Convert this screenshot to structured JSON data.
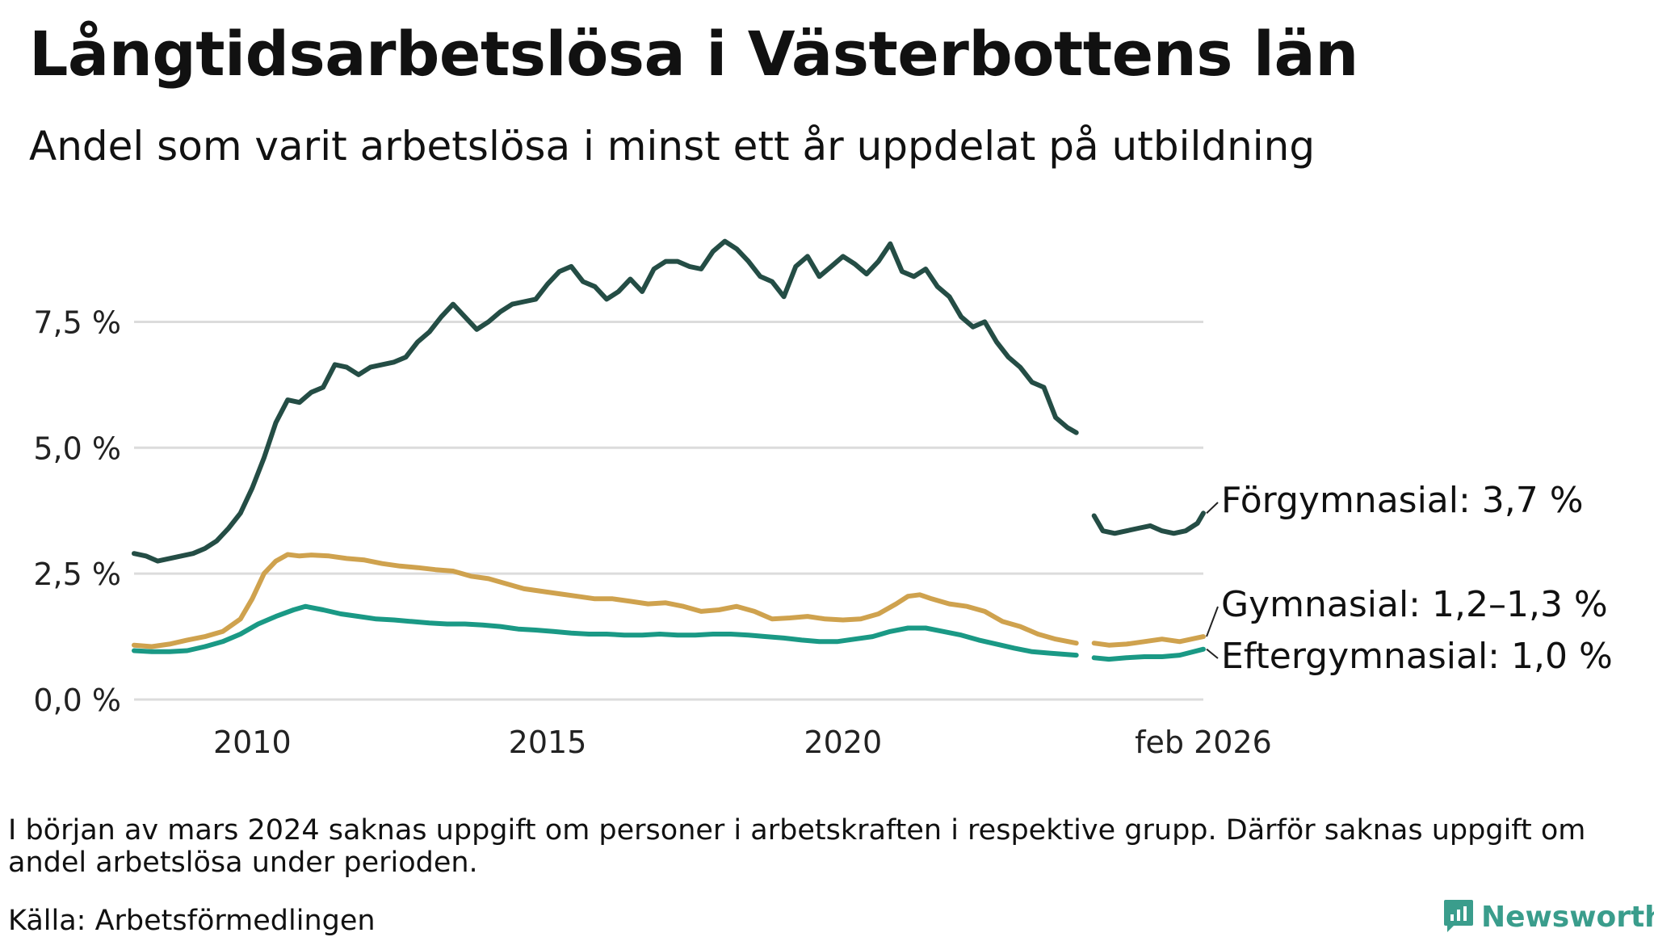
{
  "title": "Långtidsarbetslösa i Västerbottens län",
  "subtitle": "Andel som varit arbetslösa i minst ett år uppdelat på utbildning",
  "footnote": "I början av mars 2024 saknas uppgift om personer i arbetskraften i respektive grupp. Därför saknas uppgift om andel arbetslösa under perioden.",
  "source": "Källa: Arbetsförmedlingen",
  "brand": "Newsworthy",
  "chart_data": {
    "type": "line",
    "title": "Långtidsarbetslösa i Västerbottens län",
    "subtitle": "Andel som varit arbetslösa i minst ett år uppdelat på utbildning",
    "xlabel": "",
    "ylabel": "",
    "x_unit": "year (decimal)",
    "xlim": [
      2008.0,
      2026.1
    ],
    "ylim": [
      0,
      9.4
    ],
    "grid": true,
    "x_ticks": [
      {
        "value": 2010,
        "label": "2010"
      },
      {
        "value": 2015,
        "label": "2015"
      },
      {
        "value": 2020,
        "label": "2020"
      },
      {
        "value": 2026.1,
        "label": "feb 2026"
      }
    ],
    "y_ticks": [
      {
        "value": 0,
        "label": "0,0 %"
      },
      {
        "value": 2.5,
        "label": "2,5 %"
      },
      {
        "value": 5,
        "label": "5,0 %"
      },
      {
        "value": 7.5,
        "label": "7,5 %"
      }
    ],
    "gap": [
      2023.95,
      2024.25
    ],
    "series": [
      {
        "name": "Förgymnasial",
        "label": "Förgymnasial: 3,7 %",
        "color": "#244d45",
        "points": [
          [
            2008.0,
            2.9
          ],
          [
            2008.2,
            2.85
          ],
          [
            2008.4,
            2.75
          ],
          [
            2008.6,
            2.8
          ],
          [
            2008.8,
            2.85
          ],
          [
            2009.0,
            2.9
          ],
          [
            2009.2,
            3.0
          ],
          [
            2009.4,
            3.15
          ],
          [
            2009.6,
            3.4
          ],
          [
            2009.8,
            3.7
          ],
          [
            2010.0,
            4.2
          ],
          [
            2010.2,
            4.8
          ],
          [
            2010.4,
            5.5
          ],
          [
            2010.6,
            5.95
          ],
          [
            2010.8,
            5.9
          ],
          [
            2011.0,
            6.1
          ],
          [
            2011.2,
            6.2
          ],
          [
            2011.4,
            6.65
          ],
          [
            2011.6,
            6.6
          ],
          [
            2011.8,
            6.45
          ],
          [
            2012.0,
            6.6
          ],
          [
            2012.2,
            6.65
          ],
          [
            2012.4,
            6.7
          ],
          [
            2012.6,
            6.8
          ],
          [
            2012.8,
            7.1
          ],
          [
            2013.0,
            7.3
          ],
          [
            2013.2,
            7.6
          ],
          [
            2013.4,
            7.85
          ],
          [
            2013.6,
            7.6
          ],
          [
            2013.8,
            7.35
          ],
          [
            2014.0,
            7.5
          ],
          [
            2014.2,
            7.7
          ],
          [
            2014.4,
            7.85
          ],
          [
            2014.6,
            7.9
          ],
          [
            2014.8,
            7.95
          ],
          [
            2015.0,
            8.25
          ],
          [
            2015.2,
            8.5
          ],
          [
            2015.4,
            8.6
          ],
          [
            2015.6,
            8.3
          ],
          [
            2015.8,
            8.2
          ],
          [
            2016.0,
            7.95
          ],
          [
            2016.2,
            8.1
          ],
          [
            2016.4,
            8.35
          ],
          [
            2016.6,
            8.1
          ],
          [
            2016.8,
            8.55
          ],
          [
            2017.0,
            8.7
          ],
          [
            2017.2,
            8.7
          ],
          [
            2017.4,
            8.6
          ],
          [
            2017.6,
            8.55
          ],
          [
            2017.8,
            8.9
          ],
          [
            2018.0,
            9.1
          ],
          [
            2018.2,
            8.95
          ],
          [
            2018.4,
            8.7
          ],
          [
            2018.6,
            8.4
          ],
          [
            2018.8,
            8.3
          ],
          [
            2019.0,
            8.0
          ],
          [
            2019.2,
            8.6
          ],
          [
            2019.4,
            8.8
          ],
          [
            2019.6,
            8.4
          ],
          [
            2019.8,
            8.6
          ],
          [
            2020.0,
            8.8
          ],
          [
            2020.2,
            8.65
          ],
          [
            2020.4,
            8.45
          ],
          [
            2020.6,
            8.7
          ],
          [
            2020.8,
            9.05
          ],
          [
            2021.0,
            8.5
          ],
          [
            2021.2,
            8.4
          ],
          [
            2021.4,
            8.55
          ],
          [
            2021.6,
            8.2
          ],
          [
            2021.8,
            8.0
          ],
          [
            2022.0,
            7.6
          ],
          [
            2022.2,
            7.4
          ],
          [
            2022.4,
            7.5
          ],
          [
            2022.6,
            7.1
          ],
          [
            2022.8,
            6.8
          ],
          [
            2023.0,
            6.6
          ],
          [
            2023.2,
            6.3
          ],
          [
            2023.4,
            6.2
          ],
          [
            2023.6,
            5.6
          ],
          [
            2023.8,
            5.4
          ],
          [
            2023.95,
            5.3
          ],
          [
            2024.25,
            3.65
          ],
          [
            2024.4,
            3.35
          ],
          [
            2024.6,
            3.3
          ],
          [
            2024.8,
            3.35
          ],
          [
            2025.0,
            3.4
          ],
          [
            2025.2,
            3.45
          ],
          [
            2025.4,
            3.35
          ],
          [
            2025.6,
            3.3
          ],
          [
            2025.8,
            3.35
          ],
          [
            2026.0,
            3.5
          ],
          [
            2026.1,
            3.7
          ]
        ]
      },
      {
        "name": "Gymnasial",
        "label": "Gymnasial: 1,2–1,3 %",
        "color": "#cfa24e",
        "points": [
          [
            2008.0,
            1.08
          ],
          [
            2008.3,
            1.05
          ],
          [
            2008.6,
            1.1
          ],
          [
            2008.9,
            1.18
          ],
          [
            2009.2,
            1.25
          ],
          [
            2009.5,
            1.35
          ],
          [
            2009.8,
            1.6
          ],
          [
            2010.0,
            2.0
          ],
          [
            2010.2,
            2.5
          ],
          [
            2010.4,
            2.75
          ],
          [
            2010.6,
            2.88
          ],
          [
            2010.8,
            2.85
          ],
          [
            2011.0,
            2.87
          ],
          [
            2011.3,
            2.85
          ],
          [
            2011.6,
            2.8
          ],
          [
            2011.9,
            2.77
          ],
          [
            2012.2,
            2.7
          ],
          [
            2012.5,
            2.65
          ],
          [
            2012.8,
            2.62
          ],
          [
            2013.1,
            2.58
          ],
          [
            2013.4,
            2.55
          ],
          [
            2013.7,
            2.45
          ],
          [
            2014.0,
            2.4
          ],
          [
            2014.3,
            2.3
          ],
          [
            2014.6,
            2.2
          ],
          [
            2014.9,
            2.15
          ],
          [
            2015.2,
            2.1
          ],
          [
            2015.5,
            2.05
          ],
          [
            2015.8,
            2.0
          ],
          [
            2016.1,
            2.0
          ],
          [
            2016.4,
            1.95
          ],
          [
            2016.7,
            1.9
          ],
          [
            2017.0,
            1.92
          ],
          [
            2017.3,
            1.85
          ],
          [
            2017.6,
            1.75
          ],
          [
            2017.9,
            1.78
          ],
          [
            2018.2,
            1.85
          ],
          [
            2018.5,
            1.75
          ],
          [
            2018.8,
            1.6
          ],
          [
            2019.1,
            1.62
          ],
          [
            2019.4,
            1.65
          ],
          [
            2019.7,
            1.6
          ],
          [
            2020.0,
            1.58
          ],
          [
            2020.3,
            1.6
          ],
          [
            2020.6,
            1.7
          ],
          [
            2020.9,
            1.9
          ],
          [
            2021.1,
            2.05
          ],
          [
            2021.3,
            2.08
          ],
          [
            2021.5,
            2.0
          ],
          [
            2021.8,
            1.9
          ],
          [
            2022.1,
            1.85
          ],
          [
            2022.4,
            1.75
          ],
          [
            2022.7,
            1.55
          ],
          [
            2023.0,
            1.45
          ],
          [
            2023.3,
            1.3
          ],
          [
            2023.6,
            1.2
          ],
          [
            2023.95,
            1.12
          ],
          [
            2024.25,
            1.12
          ],
          [
            2024.5,
            1.08
          ],
          [
            2024.8,
            1.1
          ],
          [
            2025.1,
            1.15
          ],
          [
            2025.4,
            1.2
          ],
          [
            2025.7,
            1.15
          ],
          [
            2026.1,
            1.25
          ]
        ]
      },
      {
        "name": "Eftergymnasial",
        "label": "Eftergymnasial: 1,0 %",
        "color": "#1a9985",
        "points": [
          [
            2008.0,
            0.97
          ],
          [
            2008.3,
            0.95
          ],
          [
            2008.6,
            0.95
          ],
          [
            2008.9,
            0.97
          ],
          [
            2009.2,
            1.05
          ],
          [
            2009.5,
            1.15
          ],
          [
            2009.8,
            1.3
          ],
          [
            2010.1,
            1.5
          ],
          [
            2010.4,
            1.65
          ],
          [
            2010.7,
            1.78
          ],
          [
            2010.9,
            1.85
          ],
          [
            2011.2,
            1.78
          ],
          [
            2011.5,
            1.7
          ],
          [
            2011.8,
            1.65
          ],
          [
            2012.1,
            1.6
          ],
          [
            2012.4,
            1.58
          ],
          [
            2012.7,
            1.55
          ],
          [
            2013.0,
            1.52
          ],
          [
            2013.3,
            1.5
          ],
          [
            2013.6,
            1.5
          ],
          [
            2013.9,
            1.48
          ],
          [
            2014.2,
            1.45
          ],
          [
            2014.5,
            1.4
          ],
          [
            2014.8,
            1.38
          ],
          [
            2015.1,
            1.35
          ],
          [
            2015.4,
            1.32
          ],
          [
            2015.7,
            1.3
          ],
          [
            2016.0,
            1.3
          ],
          [
            2016.3,
            1.28
          ],
          [
            2016.6,
            1.28
          ],
          [
            2016.9,
            1.3
          ],
          [
            2017.2,
            1.28
          ],
          [
            2017.5,
            1.28
          ],
          [
            2017.8,
            1.3
          ],
          [
            2018.1,
            1.3
          ],
          [
            2018.4,
            1.28
          ],
          [
            2018.7,
            1.25
          ],
          [
            2019.0,
            1.22
          ],
          [
            2019.3,
            1.18
          ],
          [
            2019.6,
            1.15
          ],
          [
            2019.9,
            1.15
          ],
          [
            2020.2,
            1.2
          ],
          [
            2020.5,
            1.25
          ],
          [
            2020.8,
            1.35
          ],
          [
            2021.1,
            1.42
          ],
          [
            2021.4,
            1.42
          ],
          [
            2021.7,
            1.35
          ],
          [
            2022.0,
            1.28
          ],
          [
            2022.3,
            1.18
          ],
          [
            2022.6,
            1.1
          ],
          [
            2022.9,
            1.02
          ],
          [
            2023.2,
            0.95
          ],
          [
            2023.5,
            0.92
          ],
          [
            2023.95,
            0.88
          ],
          [
            2024.25,
            0.83
          ],
          [
            2024.5,
            0.8
          ],
          [
            2024.8,
            0.83
          ],
          [
            2025.1,
            0.85
          ],
          [
            2025.4,
            0.85
          ],
          [
            2025.7,
            0.88
          ],
          [
            2026.1,
            1.0
          ]
        ]
      }
    ]
  }
}
